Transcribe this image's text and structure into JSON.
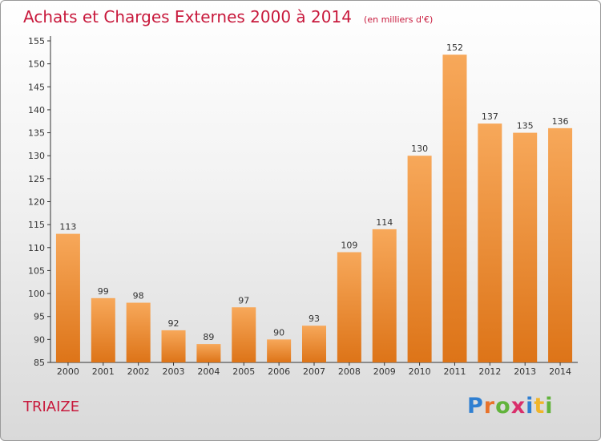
{
  "chart_data": {
    "type": "bar",
    "title": "Achats et Charges Externes 2000 à 2014",
    "subtitle": "(en milliers d'€)",
    "categories": [
      "2000",
      "2001",
      "2002",
      "2003",
      "2004",
      "2005",
      "2006",
      "2007",
      "2008",
      "2009",
      "2010",
      "2011",
      "2012",
      "2013",
      "2014"
    ],
    "values": [
      113,
      99,
      98,
      92,
      89,
      97,
      90,
      93,
      109,
      114,
      130,
      152,
      137,
      135,
      136
    ],
    "ylim": [
      85,
      155
    ],
    "yticks": [
      85,
      90,
      95,
      100,
      105,
      110,
      115,
      120,
      125,
      130,
      135,
      140,
      145,
      150,
      155
    ],
    "grid": false,
    "bar_color_top": "#f7a85a",
    "bar_color_bottom": "#dd7418"
  },
  "commune": "TRIAIZE",
  "logo": {
    "letters": [
      "P",
      "r",
      "o",
      "x",
      "i",
      "t",
      "i"
    ],
    "colors": [
      "#2f7fd1",
      "#e8722a",
      "#61b33b",
      "#d92f6b",
      "#2f7fd1",
      "#f0b52a",
      "#61b33b"
    ]
  },
  "accent_color": "#c8193c"
}
